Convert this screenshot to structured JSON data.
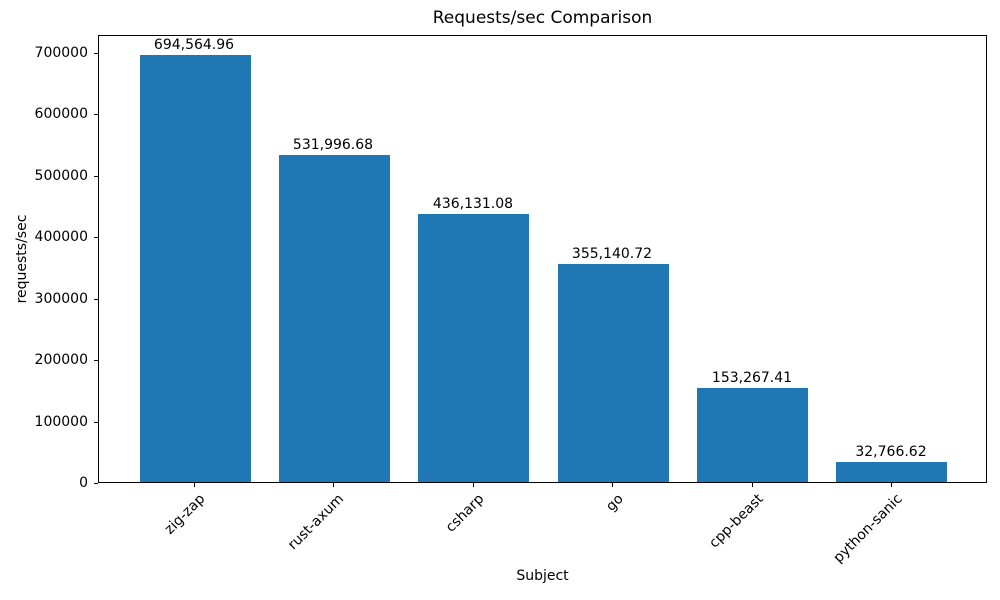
{
  "chart_data": {
    "type": "bar",
    "title": "Requests/sec Comparison",
    "xlabel": "Subject",
    "ylabel": "requests/sec",
    "categories": [
      "zig-zap",
      "rust-axum",
      "csharp",
      "go",
      "cpp-beast",
      "python-sanic"
    ],
    "values": [
      694564.96,
      531996.68,
      436131.08,
      355140.72,
      153267.41,
      32766.62
    ],
    "value_labels": [
      "694,564.96",
      "531,996.68",
      "436,131.08",
      "355,140.72",
      "153,267.41",
      "32,766.62"
    ],
    "yticks": [
      0,
      100000,
      200000,
      300000,
      400000,
      500000,
      600000,
      700000
    ],
    "ylim": [
      0,
      729293
    ],
    "bar_color": "#1f77b4",
    "grid": false,
    "legend_position": "none"
  }
}
